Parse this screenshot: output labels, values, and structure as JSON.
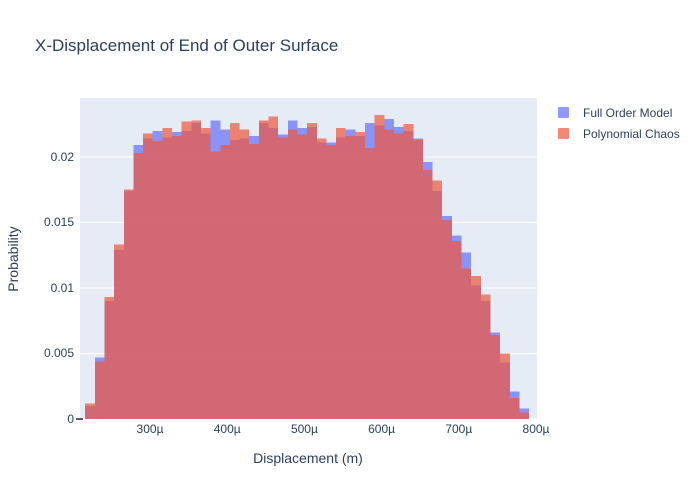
{
  "title": "X-Displacement of End of Outer Surface",
  "legend": {
    "items": [
      {
        "label": "Full Order Model",
        "color": "#636EFA"
      },
      {
        "label": "Polynomial Chaos",
        "color": "#EF553B"
      }
    ]
  },
  "colors": {
    "paper_background": "#FFFFFF",
    "plot_background": "#E5ECF6",
    "gridline": "#FFFFFF",
    "text": "#2A3F5F",
    "full_order_model": "#636EFA",
    "polynomial_chaos": "#EF553B",
    "bar_opacity": 0.7
  },
  "chart_data": {
    "type": "bar",
    "subtype": "overlaid-histogram",
    "title": "X-Displacement of End of Outer Surface",
    "xlabel": "Displacement (m)",
    "ylabel": "Probability",
    "grid": "horizontal white gridlines on",
    "legend_position": "outside top-right",
    "x_unit_suffix": "µ",
    "bin_width_micro": 12.5,
    "bin_start_micro": 216.0,
    "bin_centers_micro": [
      222.25,
      234.75,
      247.25,
      259.75,
      272.25,
      284.75,
      297.25,
      309.75,
      322.25,
      334.75,
      347.25,
      359.75,
      372.25,
      384.75,
      397.25,
      409.75,
      422.25,
      434.75,
      447.25,
      459.75,
      472.25,
      484.75,
      497.25,
      509.75,
      522.25,
      534.75,
      547.25,
      559.75,
      572.25,
      584.75,
      597.25,
      609.75,
      622.25,
      634.75,
      647.25,
      659.75,
      672.25,
      684.75,
      697.25,
      709.75,
      722.25,
      734.75,
      747.25,
      759.75,
      772.25,
      784.75
    ],
    "xlim_micro": [
      209.3,
      801.3
    ],
    "ylim": [
      0,
      0.0245
    ],
    "xticks": [
      {
        "label": "300µ",
        "value": 300
      },
      {
        "label": "400µ",
        "value": 400
      },
      {
        "label": "500µ",
        "value": 500
      },
      {
        "label": "600µ",
        "value": 600
      },
      {
        "label": "700µ",
        "value": 700
      },
      {
        "label": "800µ",
        "value": 800
      }
    ],
    "yticks": [
      {
        "label": "0",
        "value": 0
      },
      {
        "label": "0.005",
        "value": 0.005
      },
      {
        "label": "0.01",
        "value": 0.01
      },
      {
        "label": "0.015",
        "value": 0.015
      },
      {
        "label": "0.02",
        "value": 0.02
      }
    ],
    "series": [
      {
        "name": "Full Order Model",
        "color": "#636EFA",
        "opacity": 0.7,
        "values": [
          0.001,
          0.0047,
          0.009,
          0.0129,
          0.0174,
          0.0209,
          0.0214,
          0.022,
          0.0215,
          0.0219,
          0.022,
          0.0226,
          0.0218,
          0.0228,
          0.0221,
          0.0213,
          0.0214,
          0.0216,
          0.0226,
          0.0222,
          0.0217,
          0.0228,
          0.0222,
          0.0223,
          0.0211,
          0.0211,
          0.0215,
          0.0221,
          0.0216,
          0.0226,
          0.0224,
          0.0229,
          0.0223,
          0.022,
          0.0214,
          0.0196,
          0.0174,
          0.0155,
          0.014,
          0.0127,
          0.0102,
          0.009,
          0.0066,
          0.0043,
          0.0021,
          0.0008
        ]
      },
      {
        "name": "Polynomial Chaos",
        "color": "#EF553B",
        "opacity": 0.7,
        "values": [
          0.0012,
          0.0044,
          0.0093,
          0.0133,
          0.0175,
          0.0203,
          0.0218,
          0.0212,
          0.0222,
          0.0216,
          0.0227,
          0.0228,
          0.0222,
          0.0204,
          0.0209,
          0.0226,
          0.0221,
          0.021,
          0.0228,
          0.0231,
          0.0215,
          0.0221,
          0.0217,
          0.0226,
          0.0214,
          0.0209,
          0.0222,
          0.0216,
          0.0219,
          0.0207,
          0.0232,
          0.0221,
          0.0218,
          0.0225,
          0.0213,
          0.019,
          0.0182,
          0.0152,
          0.0136,
          0.0115,
          0.0109,
          0.0095,
          0.0064,
          0.005,
          0.0016,
          0.0005
        ]
      }
    ]
  }
}
